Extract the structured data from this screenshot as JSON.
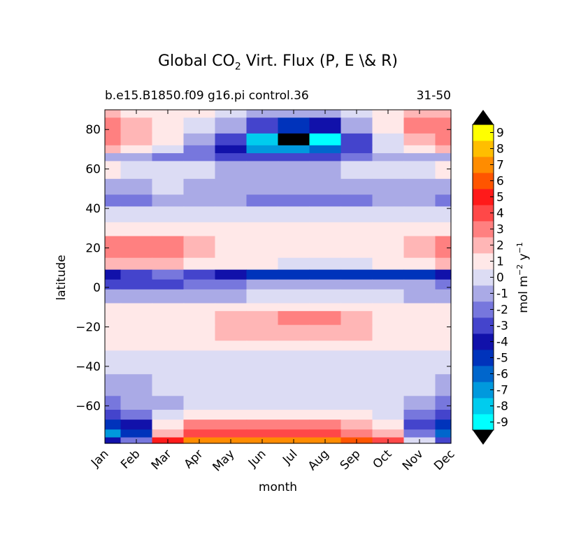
{
  "title": {
    "main": "Global CO",
    "sub": "2",
    "rest": " Virt. Flux (P, E \\& R)"
  },
  "subtitle": "b.e15.B1850.f09 g16.pi control.36",
  "period": "31-50",
  "colorbar": {
    "unit_a": "mol m",
    "exp_a": "−2",
    "unit_b": " y",
    "exp_b": "−1",
    "levels": [
      "-9",
      "-8",
      "-7",
      "-6",
      "-5",
      "-4",
      "-3",
      "-2",
      "-1",
      "0",
      "1",
      "2",
      "3",
      "4",
      "5",
      "6",
      "7",
      "8",
      "9"
    ],
    "colors": [
      "#00ffff",
      "#00ccee",
      "#0099dd",
      "#0066cc",
      "#0033bb",
      "#1111aa",
      "#4444cc",
      "#7777dd",
      "#aaaae6",
      "#dcdcf4",
      "#ffe8e8",
      "#ffb6b6",
      "#ff8080",
      "#ff4848",
      "#ff1a1a",
      "#ff5500",
      "#ff8c00",
      "#ffbe00",
      "#ffff00"
    ],
    "under_color": "#000000",
    "over_color": "#000000"
  },
  "chart_data": {
    "type": "heatmap",
    "title": "Global CO2 Virt. Flux (P, E \\& R)",
    "xlabel": "month",
    "ylabel": "latitude",
    "colorbar_label": "mol m−2 y−1",
    "x_categories": [
      "Jan",
      "Feb",
      "Mar",
      "Apr",
      "May",
      "Jun",
      "Jul",
      "Aug",
      "Sep",
      "Oct",
      "Nov",
      "Dec"
    ],
    "yticks": [
      80,
      60,
      40,
      20,
      0,
      -20,
      -40,
      -60
    ],
    "ylim": [
      -79,
      90
    ],
    "contour_levels": [
      -9,
      -8,
      -7,
      -6,
      -5,
      -4,
      -3,
      -2,
      -1,
      0,
      1,
      2,
      3,
      4,
      5,
      6,
      7,
      8,
      9
    ],
    "bands": [
      {
        "lat": [
          86,
          90
        ],
        "values": [
          2,
          1,
          1,
          1,
          0,
          -1,
          -1,
          -1,
          0,
          1,
          2,
          2
        ]
      },
      {
        "lat": [
          78,
          86
        ],
        "values": [
          3,
          2,
          1,
          0,
          -1,
          -3,
          -5,
          -4,
          -1,
          1,
          3,
          3
        ]
      },
      {
        "lat": [
          72,
          78
        ],
        "values": [
          3,
          2,
          1,
          -1,
          -3,
          -8,
          -10,
          -9,
          -3,
          0,
          2,
          3
        ]
      },
      {
        "lat": [
          68,
          72
        ],
        "values": [
          2,
          1,
          0,
          -2,
          -4,
          -7,
          -7,
          -6,
          -3,
          0,
          1,
          2
        ]
      },
      {
        "lat": [
          64,
          68
        ],
        "values": [
          -1,
          -1,
          -2,
          -2,
          -3,
          -3,
          -3,
          -3,
          -2,
          -1,
          -1,
          -1
        ]
      },
      {
        "lat": [
          55,
          64
        ],
        "values": [
          1,
          0,
          0,
          0,
          -1,
          -1,
          -1,
          -1,
          0,
          0,
          0,
          1
        ]
      },
      {
        "lat": [
          47,
          55
        ],
        "values": [
          -1,
          -1,
          0,
          -1,
          -1,
          -1,
          -1,
          -1,
          -1,
          -1,
          -1,
          -1
        ]
      },
      {
        "lat": [
          41,
          47
        ],
        "values": [
          -2,
          -2,
          -1,
          -1,
          -1,
          -2,
          -2,
          -2,
          -2,
          -1,
          -1,
          -2
        ]
      },
      {
        "lat": [
          33,
          41
        ],
        "values": [
          0,
          0,
          0,
          0,
          0,
          0,
          0,
          0,
          0,
          0,
          0,
          0
        ]
      },
      {
        "lat": [
          26,
          33
        ],
        "values": [
          1,
          1,
          1,
          1,
          1,
          1,
          1,
          1,
          1,
          1,
          1,
          1
        ]
      },
      {
        "lat": [
          15,
          26
        ],
        "values": [
          3,
          3,
          3,
          2,
          1,
          1,
          1,
          1,
          1,
          1,
          2,
          3
        ]
      },
      {
        "lat": [
          9,
          15
        ],
        "values": [
          2,
          2,
          2,
          1,
          1,
          1,
          0,
          0,
          0,
          1,
          1,
          2
        ]
      },
      {
        "lat": [
          4,
          9
        ],
        "values": [
          -4,
          -3,
          -2,
          -3,
          -4,
          -5,
          -5,
          -5,
          -5,
          -5,
          -5,
          -4
        ]
      },
      {
        "lat": [
          -1,
          4
        ],
        "values": [
          -3,
          -3,
          -3,
          -2,
          -2,
          -1,
          -1,
          -1,
          -1,
          -1,
          -1,
          -2
        ]
      },
      {
        "lat": [
          -8,
          -1
        ],
        "values": [
          -1,
          -1,
          -1,
          -1,
          -1,
          0,
          0,
          0,
          0,
          0,
          -1,
          -1
        ]
      },
      {
        "lat": [
          -12,
          -8
        ],
        "values": [
          1,
          1,
          1,
          1,
          1,
          1,
          1,
          1,
          1,
          1,
          1,
          1
        ]
      },
      {
        "lat": [
          -19,
          -12
        ],
        "values": [
          1,
          1,
          1,
          1,
          2,
          2,
          3,
          3,
          2,
          1,
          1,
          1
        ]
      },
      {
        "lat": [
          -27,
          -19
        ],
        "values": [
          1,
          1,
          1,
          1,
          2,
          2,
          2,
          2,
          2,
          1,
          1,
          1
        ]
      },
      {
        "lat": [
          -32,
          -27
        ],
        "values": [
          1,
          1,
          1,
          1,
          1,
          1,
          1,
          1,
          1,
          1,
          1,
          1
        ]
      },
      {
        "lat": [
          -44,
          -32
        ],
        "values": [
          0,
          0,
          0,
          0,
          0,
          0,
          0,
          0,
          0,
          0,
          0,
          0
        ]
      },
      {
        "lat": [
          -55,
          -44
        ],
        "values": [
          -1,
          -1,
          0,
          0,
          0,
          0,
          0,
          0,
          0,
          0,
          0,
          -1
        ]
      },
      {
        "lat": [
          -62,
          -55
        ],
        "values": [
          -2,
          -1,
          -1,
          0,
          0,
          0,
          0,
          0,
          0,
          0,
          -1,
          -2
        ]
      },
      {
        "lat": [
          -67,
          -62
        ],
        "values": [
          -3,
          -2,
          0,
          1,
          1,
          1,
          1,
          1,
          1,
          0,
          -2,
          -3
        ]
      },
      {
        "lat": [
          -72,
          -67
        ],
        "values": [
          -5,
          -4,
          1,
          3,
          3,
          3,
          3,
          3,
          2,
          1,
          -3,
          -5
        ]
      },
      {
        "lat": [
          -76,
          -72
        ],
        "values": [
          -7,
          -5,
          2,
          4,
          4,
          4,
          4,
          4,
          3,
          2,
          -2,
          -6
        ]
      },
      {
        "lat": [
          -79,
          -76
        ],
        "values": [
          -4,
          -2,
          5,
          7,
          7,
          7,
          7,
          7,
          6,
          4,
          0,
          -3
        ]
      }
    ]
  }
}
